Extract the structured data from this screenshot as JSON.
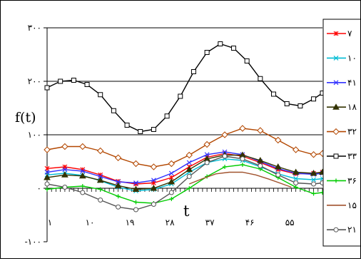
{
  "chart_data": {
    "type": "line",
    "title": "",
    "xlabel": "t",
    "ylabel": "f(t)",
    "ylim": [
      -100,
      300
    ],
    "xlim": [
      1,
      63
    ],
    "grid": true,
    "legend_position": "right",
    "y_ticks": [
      {
        "value": 300,
        "label": "۳۰۰"
      },
      {
        "value": 200,
        "label": "۲۰۰"
      },
      {
        "value": 100,
        "label": "۱۰۰"
      },
      {
        "value": 0,
        "label": "۰"
      },
      {
        "value": -100,
        "label": "-۱۰۰"
      }
    ],
    "x_ticks": [
      {
        "value": 1,
        "label": "۱"
      },
      {
        "value": 10,
        "label": "۱۰"
      },
      {
        "value": 19,
        "label": "۱۹"
      },
      {
        "value": 28,
        "label": "۲۸"
      },
      {
        "value": 37,
        "label": "۳۷"
      },
      {
        "value": 46,
        "label": "۴۶"
      },
      {
        "value": 55,
        "label": "۵۵"
      }
    ],
    "series": [
      {
        "name": "۷",
        "color": "#ff0000",
        "marker": "star",
        "x": [
          1,
          5,
          9,
          13,
          17,
          21,
          25,
          29,
          33,
          37,
          41,
          45,
          49,
          53,
          57,
          61,
          63
        ],
        "y": [
          37,
          40,
          35,
          25,
          13,
          8,
          10,
          20,
          40,
          58,
          65,
          60,
          48,
          35,
          27,
          28,
          30
        ]
      },
      {
        "name": "۱۰",
        "color": "#00bcd4",
        "marker": "x",
        "x": [
          1,
          5,
          9,
          13,
          17,
          21,
          25,
          29,
          33,
          37,
          41,
          45,
          49,
          53,
          57,
          61,
          63
        ],
        "y": [
          25,
          28,
          24,
          14,
          2,
          -5,
          -2,
          8,
          30,
          48,
          55,
          52,
          40,
          27,
          18,
          16,
          18
        ]
      },
      {
        "name": "۴۱",
        "color": "#3333ff",
        "marker": "x",
        "x": [
          1,
          5,
          9,
          13,
          17,
          21,
          25,
          29,
          33,
          37,
          41,
          45,
          49,
          53,
          57,
          61,
          63
        ],
        "y": [
          30,
          35,
          32,
          22,
          12,
          10,
          15,
          28,
          48,
          63,
          68,
          63,
          50,
          37,
          28,
          26,
          28
        ]
      },
      {
        "name": "۱۸",
        "color": "#333300",
        "marker": "triangle",
        "x": [
          1,
          5,
          9,
          13,
          17,
          21,
          25,
          29,
          33,
          37,
          41,
          45,
          49,
          53,
          57,
          61,
          63
        ],
        "y": [
          20,
          25,
          23,
          15,
          5,
          -2,
          0,
          12,
          35,
          55,
          62,
          62,
          52,
          40,
          30,
          28,
          30
        ]
      },
      {
        "name": "۳۲",
        "color": "#b34700",
        "marker": "diamond",
        "x": [
          1,
          5,
          9,
          13,
          17,
          21,
          25,
          29,
          33,
          37,
          41,
          45,
          49,
          53,
          57,
          61,
          63
        ],
        "y": [
          72,
          78,
          78,
          70,
          57,
          46,
          40,
          46,
          62,
          82,
          100,
          112,
          108,
          90,
          72,
          63,
          65
        ]
      },
      {
        "name": "۳۳",
        "color": "#000000",
        "marker": "square",
        "x": [
          1,
          4,
          7,
          10,
          13,
          16,
          19,
          22,
          25,
          28,
          31,
          34,
          37,
          40,
          43,
          46,
          49,
          52,
          55,
          58,
          61,
          63
        ],
        "y": [
          188,
          200,
          202,
          194,
          175,
          145,
          118,
          106,
          110,
          135,
          172,
          218,
          254,
          270,
          262,
          238,
          205,
          176,
          158,
          154,
          167,
          178
        ]
      },
      {
        "name": "۳۶",
        "color": "#00cc00",
        "marker": "plus",
        "x": [
          1,
          5,
          9,
          13,
          17,
          21,
          25,
          29,
          33,
          37,
          41,
          45,
          49,
          53,
          57,
          61,
          63
        ],
        "y": [
          -2,
          2,
          4,
          -2,
          -15,
          -26,
          -28,
          -20,
          0,
          22,
          40,
          44,
          36,
          20,
          2,
          -10,
          -8
        ]
      },
      {
        "name": "۱۵",
        "color": "#a0522d",
        "marker": "none",
        "x": [
          33,
          36,
          39,
          42,
          45,
          48,
          51,
          54,
          56
        ],
        "y": [
          8,
          18,
          27,
          30,
          30,
          25,
          17,
          8,
          2
        ]
      },
      {
        "name": "۲۱",
        "color": "#555555",
        "marker": "circle",
        "x": [
          1,
          5,
          9,
          13,
          17,
          21,
          25,
          29,
          33,
          37,
          41,
          45,
          49,
          53,
          57,
          61,
          63
        ],
        "y": [
          8,
          2,
          -8,
          -22,
          -35,
          -40,
          -30,
          -8,
          22,
          48,
          60,
          55,
          42,
          25,
          10,
          8,
          10
        ]
      }
    ]
  }
}
